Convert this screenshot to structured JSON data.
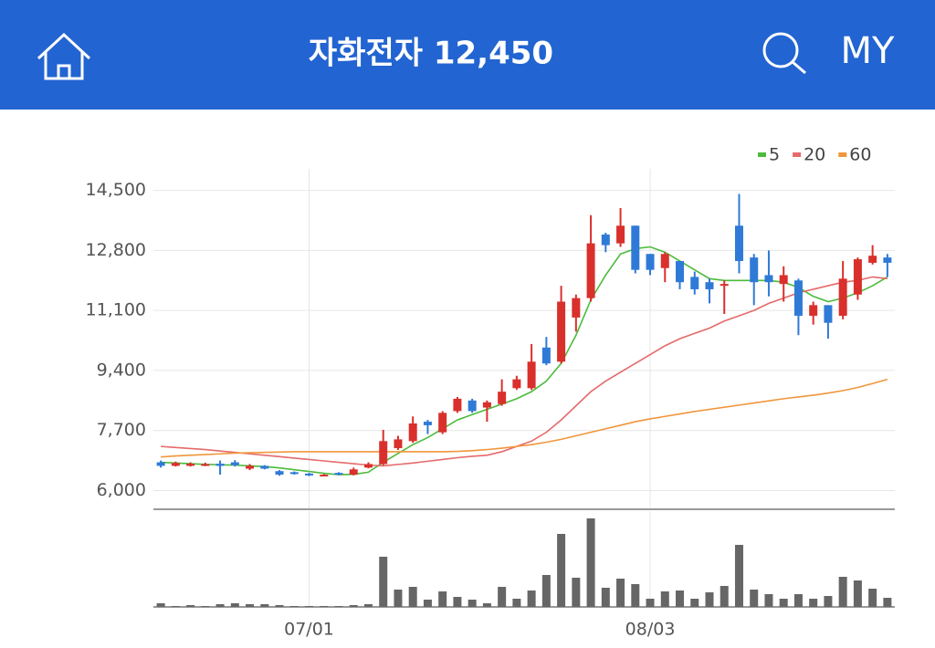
{
  "header": {
    "title": "자화전자 12,450",
    "menu": "MY"
  },
  "chart_data": {
    "type": "candlestick",
    "categories": [
      null,
      null,
      null,
      null,
      null,
      null,
      null,
      null,
      null,
      null,
      "07/01",
      null,
      null,
      null,
      null,
      null,
      null,
      null,
      null,
      null,
      null,
      null,
      null,
      null,
      null,
      null,
      null,
      null,
      null,
      null,
      null,
      null,
      null,
      "08/03",
      null,
      null,
      null,
      null,
      null,
      null,
      null,
      null,
      null,
      null,
      null,
      null,
      null,
      null,
      null,
      null
    ],
    "open": [
      6800,
      6700,
      6700,
      6700,
      6760,
      6800,
      6620,
      6700,
      6550,
      6520,
      6480,
      6420,
      6500,
      6450,
      6650,
      6750,
      7200,
      7400,
      7950,
      7650,
      8250,
      8550,
      8350,
      8450,
      8900,
      8900,
      10050,
      9650,
      10900,
      11450,
      13250,
      13000,
      13500,
      12700,
      12300,
      12500,
      12050,
      11900,
      11800,
      13500,
      12600,
      12100,
      11850,
      11950,
      10950,
      11250,
      10950,
      11550,
      12450,
      12600
    ],
    "high": [
      6850,
      6820,
      6800,
      6790,
      6850,
      6860,
      6750,
      6720,
      6580,
      6540,
      6500,
      6470,
      6520,
      6650,
      6800,
      7720,
      7550,
      8100,
      8000,
      8250,
      8650,
      8600,
      8550,
      9150,
      9250,
      10150,
      10350,
      11800,
      11550,
      13800,
      13300,
      14000,
      13500,
      12700,
      12750,
      12500,
      12200,
      12000,
      11950,
      14400,
      12700,
      12800,
      12350,
      12000,
      11350,
      11250,
      12500,
      12600,
      12950,
      12700
    ],
    "low": [
      6650,
      6680,
      6680,
      6690,
      6450,
      6680,
      6580,
      6600,
      6420,
      6450,
      6410,
      6400,
      6430,
      6430,
      6630,
      6720,
      7150,
      7350,
      7600,
      7600,
      8200,
      8200,
      7950,
      8400,
      8850,
      8850,
      9550,
      9600,
      10500,
      11350,
      12750,
      12900,
      12150,
      12100,
      11900,
      11700,
      11550,
      11300,
      11000,
      12150,
      11250,
      11500,
      11350,
      10400,
      10700,
      10300,
      10850,
      11400,
      12400,
      12050
    ],
    "close": [
      6700,
      6780,
      6760,
      6750,
      6700,
      6720,
      6700,
      6620,
      6450,
      6470,
      6430,
      6450,
      6450,
      6600,
      6750,
      7400,
      7450,
      7900,
      7850,
      8200,
      8600,
      8250,
      8500,
      8800,
      9150,
      9650,
      9600,
      11350,
      11450,
      13000,
      12950,
      13500,
      12250,
      12250,
      12700,
      11900,
      11700,
      11700,
      11850,
      12500,
      11900,
      11900,
      12100,
      10950,
      11250,
      10750,
      12000,
      12550,
      12650,
      12450
    ],
    "volume": [
      4,
      1,
      2,
      1,
      3,
      4,
      3,
      3,
      2,
      1,
      1,
      1,
      1,
      2,
      3,
      55,
      19,
      22,
      8,
      17,
      11,
      8,
      4,
      22,
      9,
      18,
      35,
      80,
      32,
      97,
      21,
      31,
      25,
      9,
      17,
      18,
      9,
      16,
      23,
      68,
      19,
      14,
      9,
      14,
      9,
      12,
      33,
      29,
      20,
      10
    ],
    "volume_lim": [
      0,
      100
    ],
    "up_color": "#d9302c",
    "down_color": "#2f7ad6",
    "volume_color": "#666666",
    "series": [
      {
        "name": "5",
        "color": "#4cbb3c",
        "values": [
          6800,
          6780,
          6760,
          6740,
          6730,
          6720,
          6700,
          6680,
          6640,
          6590,
          6540,
          6490,
          6450,
          6460,
          6520,
          6800,
          7050,
          7300,
          7500,
          7750,
          8000,
          8150,
          8300,
          8450,
          8600,
          8800,
          9100,
          9600,
          10400,
          11400,
          12100,
          12700,
          12850,
          12900,
          12750,
          12500,
          12250,
          12000,
          11950,
          11950,
          11950,
          11950,
          11900,
          11750,
          11500,
          11350,
          11450,
          11600,
          11800,
          12050
        ]
      },
      {
        "name": "20",
        "color": "#e56a6a",
        "values": [
          7250,
          7220,
          7190,
          7160,
          7120,
          7080,
          7040,
          7000,
          6960,
          6920,
          6880,
          6840,
          6800,
          6760,
          6720,
          6700,
          6740,
          6780,
          6830,
          6880,
          6930,
          6970,
          7000,
          7100,
          7250,
          7400,
          7650,
          8000,
          8400,
          8800,
          9100,
          9350,
          9600,
          9850,
          10100,
          10300,
          10450,
          10600,
          10800,
          10950,
          11100,
          11300,
          11450,
          11600,
          11700,
          11800,
          11900,
          11950,
          12050,
          12000
        ]
      },
      {
        "name": "60",
        "color": "#f0963c",
        "values": [
          6950,
          6980,
          7000,
          7020,
          7040,
          7060,
          7070,
          7080,
          7090,
          7100,
          7100,
          7100,
          7100,
          7100,
          7100,
          7100,
          7100,
          7100,
          7100,
          7100,
          7110,
          7130,
          7160,
          7200,
          7250,
          7300,
          7370,
          7450,
          7550,
          7650,
          7750,
          7850,
          7950,
          8030,
          8100,
          8170,
          8240,
          8300,
          8360,
          8420,
          8480,
          8540,
          8600,
          8650,
          8700,
          8760,
          8830,
          8920,
          9030,
          9150
        ]
      }
    ],
    "ylim": [
      5470,
      15110
    ],
    "yticks": [
      {
        "value": 6000,
        "label": "6,000"
      },
      {
        "value": 7700,
        "label": "7,700"
      },
      {
        "value": 9400,
        "label": "9,400"
      },
      {
        "value": 11100,
        "label": "11,100"
      },
      {
        "value": 12800,
        "label": "12,800"
      },
      {
        "value": 14500,
        "label": "14,500"
      }
    ],
    "grid": true
  }
}
